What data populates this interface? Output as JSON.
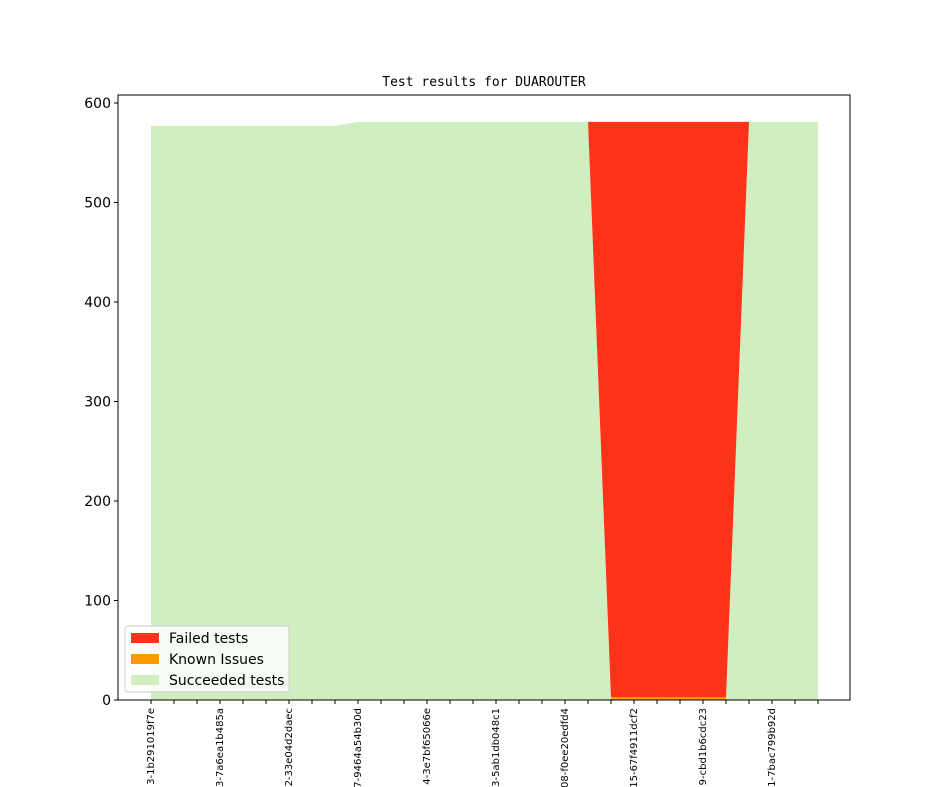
{
  "chart_data": {
    "type": "area",
    "title": "Test results for DUAROUTER",
    "xlabel": "",
    "ylabel": "",
    "ylim": [
      0,
      600
    ],
    "yticks": [
      0,
      100,
      200,
      300,
      400,
      500,
      600
    ],
    "x_count": 30,
    "xtick_labels": [
      {
        "index": 0,
        "label": "3-1b291019f7e"
      },
      {
        "index": 3,
        "label": "3-7a6ea1b485a"
      },
      {
        "index": 6,
        "label": "2-33e04d2daec"
      },
      {
        "index": 9,
        "label": "7-9464a54b30d"
      },
      {
        "index": 12,
        "label": "4-3e7bf65066e"
      },
      {
        "index": 15,
        "label": "3-5ab1db048c1"
      },
      {
        "index": 18,
        "label": "08-f0ee20edfd4"
      },
      {
        "index": 21,
        "label": "15-67f4911dcf2"
      },
      {
        "index": 24,
        "label": "9-cbd1b6cdc23"
      },
      {
        "index": 27,
        "label": "1-7bac799b92d"
      }
    ],
    "series": [
      {
        "name": "Succeeded tests",
        "color": "#d0eec0",
        "values": [
          577,
          577,
          577,
          577,
          577,
          577,
          577,
          577,
          577,
          581,
          581,
          581,
          581,
          581,
          581,
          581,
          581,
          581,
          581,
          581,
          0,
          0,
          0,
          0,
          0,
          0,
          581,
          581,
          581,
          581
        ]
      },
      {
        "name": "Known Issues",
        "color": "#ff9900",
        "values": [
          0,
          0,
          0,
          0,
          0,
          0,
          0,
          0,
          0,
          0,
          0,
          0,
          0,
          0,
          0,
          0,
          0,
          0,
          0,
          0,
          3,
          3,
          3,
          3,
          3,
          3,
          0,
          0,
          0,
          0
        ]
      },
      {
        "name": "Failed tests",
        "color": "#ff3319",
        "values": [
          0,
          0,
          0,
          0,
          0,
          0,
          0,
          0,
          0,
          0,
          0,
          0,
          0,
          0,
          0,
          0,
          0,
          0,
          0,
          0,
          578,
          578,
          578,
          578,
          578,
          578,
          0,
          0,
          0,
          0
        ]
      }
    ],
    "legend": {
      "placement": "lower-left",
      "entries": [
        {
          "name": "Failed tests",
          "color": "#ff3319"
        },
        {
          "name": "Known Issues",
          "color": "#ff9900"
        },
        {
          "name": "Succeeded tests",
          "color": "#d0eec0"
        }
      ]
    },
    "grid": false
  }
}
